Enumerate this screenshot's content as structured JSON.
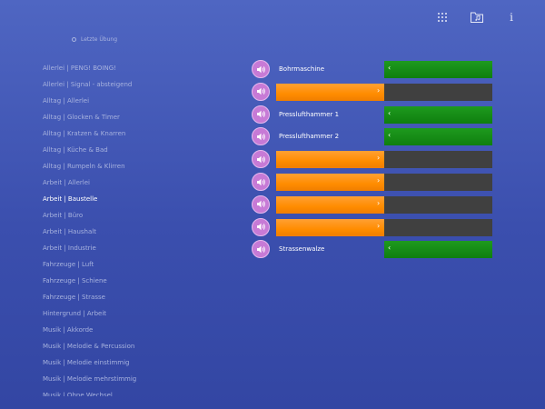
{
  "toolbar": {
    "icons": [
      "grid-icon",
      "music-folder-icon",
      "info-icon"
    ],
    "info_label": "i"
  },
  "last_exercise": {
    "label": "Letzte Übung"
  },
  "categories": [
    {
      "label": "Allerlei | PENG! BOING!",
      "active": false
    },
    {
      "label": "Allerlei | Signal - absteigend",
      "active": false
    },
    {
      "label": "Alltag | Allerlei",
      "active": false
    },
    {
      "label": "Alltag | Glocken & Timer",
      "active": false
    },
    {
      "label": "Alltag | Kratzen & Knarren",
      "active": false
    },
    {
      "label": "Alltag | Küche & Bad",
      "active": false
    },
    {
      "label": "Alltag | Rumpeln & Klirren",
      "active": false
    },
    {
      "label": "Arbeit | Allerlei",
      "active": false
    },
    {
      "label": "Arbeit | Baustelle",
      "active": true
    },
    {
      "label": "Arbeit | Büro",
      "active": false
    },
    {
      "label": "Arbeit | Haushalt",
      "active": false
    },
    {
      "label": "Arbeit | Industrie",
      "active": false
    },
    {
      "label": "Fahrzeuge | Luft",
      "active": false
    },
    {
      "label": "Fahrzeuge | Schiene",
      "active": false
    },
    {
      "label": "Fahrzeuge | Strasse",
      "active": false
    },
    {
      "label": "Hintergrund | Arbeit",
      "active": false
    },
    {
      "label": "Musik | Akkorde",
      "active": false
    },
    {
      "label": "Musik | Melodie & Percussion",
      "active": false
    },
    {
      "label": "Musik | Melodie einstimmig",
      "active": false
    },
    {
      "label": "Musik | Melodie mehrstimmig",
      "active": false
    },
    {
      "label": "Musik | Ohne Wechsel",
      "active": false
    }
  ],
  "rows": [
    {
      "state": "answered",
      "label": "Bohrmaschine",
      "chevron": "‹"
    },
    {
      "state": "pending",
      "label": "",
      "chevron": "›"
    },
    {
      "state": "answered",
      "label": "Presslufthammer 1",
      "chevron": "‹"
    },
    {
      "state": "answered",
      "label": "Presslufthammer 2",
      "chevron": "‹"
    },
    {
      "state": "pending",
      "label": "",
      "chevron": "›"
    },
    {
      "state": "pending",
      "label": "",
      "chevron": "›"
    },
    {
      "state": "pending",
      "label": "",
      "chevron": "›"
    },
    {
      "state": "pending",
      "label": "",
      "chevron": "›"
    },
    {
      "state": "answered",
      "label": "Strassenwalze",
      "chevron": "‹"
    }
  ],
  "colors": {
    "background": "#4158b4",
    "sound_button": "#c77ad6",
    "pending_fill": "#ff8c00",
    "empty_slot": "#404040",
    "answer_fill": "#118511"
  }
}
